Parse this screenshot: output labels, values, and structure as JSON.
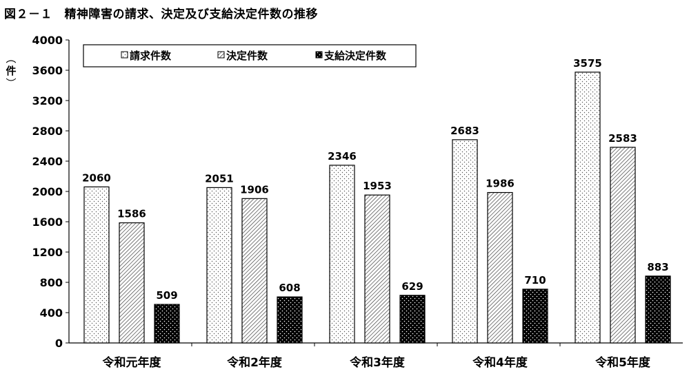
{
  "title": "図２－１　精神障害の請求、決定及び支給決定件数の推移",
  "unit_label": "件",
  "chart_data": {
    "type": "bar",
    "title": "図２－１　精神障害の請求、決定及び支給決定件数の推移",
    "ylabel": "件",
    "xlabel": "",
    "categories": [
      "令和元年度",
      "令和2年度",
      "令和3年度",
      "令和4年度",
      "令和5年度"
    ],
    "series": [
      {
        "name": "請求件数",
        "values": [
          2060,
          2051,
          2346,
          2683,
          3575
        ],
        "pattern": "light-dots"
      },
      {
        "name": "決定件数",
        "values": [
          1586,
          1906,
          1953,
          1986,
          2583
        ],
        "pattern": "diagonal-hatch"
      },
      {
        "name": "支給決定件数",
        "values": [
          509,
          608,
          629,
          710,
          883
        ],
        "pattern": "black-dots"
      }
    ],
    "ylim": [
      0,
      4000
    ],
    "yticks": [
      0,
      400,
      800,
      1200,
      1600,
      2000,
      2400,
      2800,
      3200,
      3600,
      4000
    ],
    "legend_position": "top-left inside",
    "grid": false,
    "data_labels": true
  }
}
